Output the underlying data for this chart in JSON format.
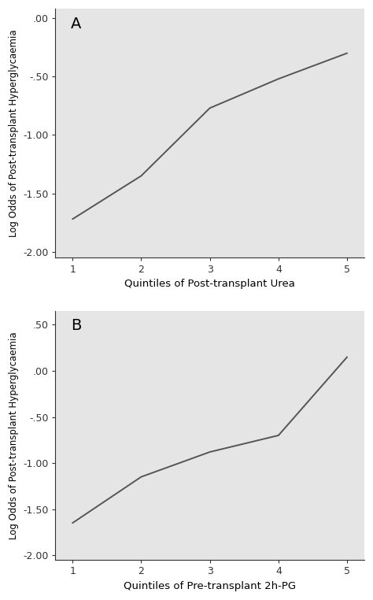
{
  "panel_A": {
    "x": [
      1,
      2,
      3,
      4,
      5
    ],
    "y": [
      -1.72,
      -1.35,
      -0.77,
      -0.52,
      -0.3
    ],
    "xlabel": "Quintiles of Post-transplant Urea",
    "ylabel": "Log Odds of Post-transplant Hyperglycaemia",
    "label": "A",
    "ylim": [
      -2.05,
      0.08
    ],
    "yticks": [
      -2.0,
      -1.5,
      -1.0,
      -0.5,
      0.0
    ],
    "ytick_labels": [
      "-2.00",
      "-1.50",
      "-1.00",
      "-.50",
      ".00"
    ]
  },
  "panel_B": {
    "x": [
      1,
      2,
      3,
      4,
      5
    ],
    "y": [
      -1.65,
      -1.15,
      -0.88,
      -0.7,
      0.15
    ],
    "xlabel": "Quintiles of Pre-transplant 2h-PG",
    "ylabel": "Log Odds of Post-transplant Hyperglycaemia",
    "label": "B",
    "ylim": [
      -2.05,
      0.65
    ],
    "yticks": [
      -2.0,
      -1.5,
      -1.0,
      -0.5,
      0.0,
      0.5
    ],
    "ytick_labels": [
      "-2.00",
      "-1.50",
      "-1.00",
      "-.50",
      ".00",
      ".50"
    ]
  },
  "line_color": "#555555",
  "line_width": 1.4,
  "bg_color": "#e5e5e5",
  "xticks": [
    1,
    2,
    3,
    4,
    5
  ],
  "xlabel_fontsize": 9.5,
  "ylabel_fontsize": 8.5,
  "tick_fontsize": 9,
  "panel_label_fontsize": 14,
  "figsize": [
    4.74,
    7.62
  ],
  "dpi": 100
}
